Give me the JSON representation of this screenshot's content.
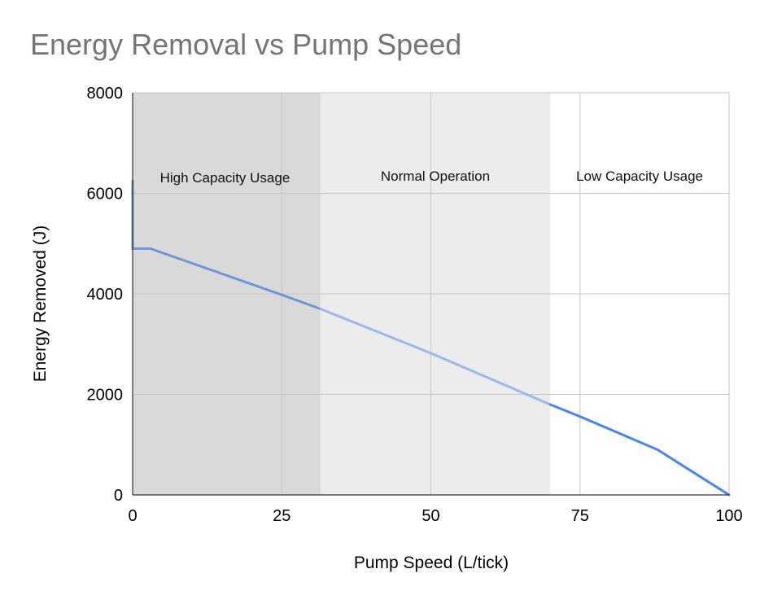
{
  "chart_data": {
    "type": "line",
    "title": "Energy Removal vs Pump Speed",
    "xlabel": "Pump Speed (L/tick)",
    "ylabel": "Energy Removed (J)",
    "xlim": [
      0,
      100
    ],
    "ylim": [
      0,
      8000
    ],
    "xticks": [
      0,
      25,
      50,
      75,
      100
    ],
    "yticks": [
      0,
      2000,
      4000,
      6000,
      8000
    ],
    "xtick_labels": [
      "0",
      "25",
      "50",
      "75",
      "100"
    ],
    "ytick_labels": [
      "0",
      "2000",
      "4000",
      "6000",
      "8000"
    ],
    "grid": true,
    "series": [
      {
        "name": "Energy Removed",
        "points": [
          [
            0,
            6250
          ],
          [
            0,
            4900
          ],
          [
            3,
            4900
          ],
          [
            25,
            3980
          ],
          [
            31.5,
            3700
          ],
          [
            50,
            2820
          ],
          [
            70,
            1800
          ],
          [
            75,
            1560
          ],
          [
            88,
            900
          ],
          [
            100,
            0
          ]
        ]
      }
    ],
    "regions": [
      {
        "label": "High Capacity Usage",
        "x0": 0,
        "x1": 31.5,
        "color": "#d9d9d9",
        "line_color": "#6d97d6"
      },
      {
        "label": "Normal Operation",
        "x0": 31.5,
        "x1": 70,
        "color": "#ececec",
        "line_color": "#9ab9ec"
      },
      {
        "label": "Low Capacity Usage",
        "x0": 70,
        "x1": 100,
        "color": "#ffffff",
        "line_color": "#4a86e8"
      }
    ]
  }
}
